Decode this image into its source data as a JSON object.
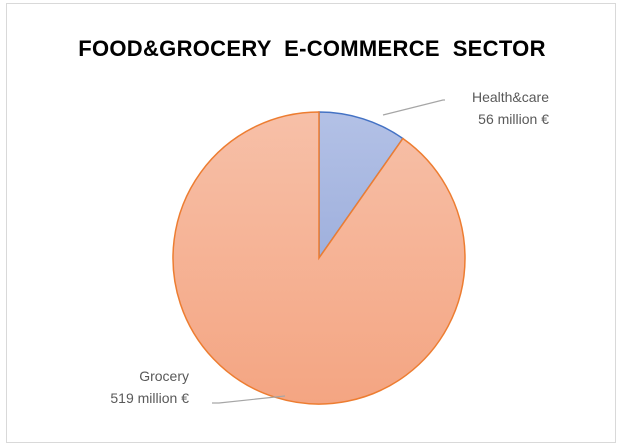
{
  "chart_data": {
    "type": "pie",
    "title": "FOOD&GROCERY  E-COMMERCE  SECTOR",
    "slices": [
      {
        "label": "Health&care",
        "value": 56,
        "value_label": "56 million €",
        "color": "#a9b9e0",
        "stroke": "#4472c4"
      },
      {
        "label": "Grocery",
        "value": 519,
        "value_label": "519 million €",
        "color": "#f5b396",
        "stroke": "#ed7d31"
      }
    ],
    "unit": "million €",
    "legend": "none",
    "start_angle": "top, clockwise"
  }
}
